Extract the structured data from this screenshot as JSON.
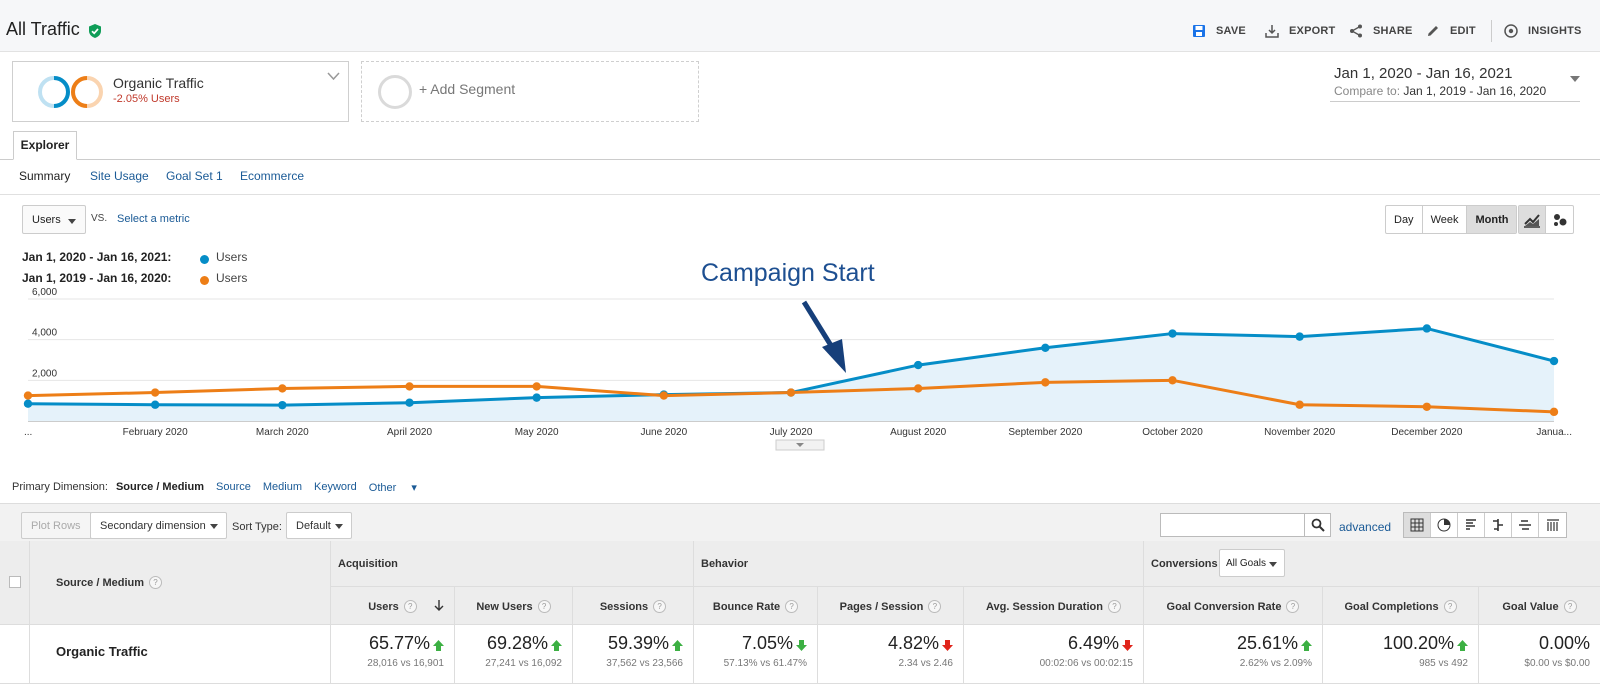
{
  "header": {
    "title": "All Traffic",
    "actions": {
      "save": "SAVE",
      "export": "EXPORT",
      "share": "SHARE",
      "edit": "EDIT",
      "insights": "INSIGHTS"
    }
  },
  "segments": {
    "active": {
      "name": "Organic Traffic",
      "delta": "-2.05% Users"
    },
    "add_label": "+ Add Segment"
  },
  "date_range": {
    "primary": "Jan 1, 2020 - Jan 16, 2021",
    "compare_label": "Compare to:",
    "compare": "Jan 1, 2019 - Jan 16, 2020"
  },
  "tabs": {
    "explorer": "Explorer",
    "subtabs": [
      "Summary",
      "Site Usage",
      "Goal Set 1",
      "Ecommerce"
    ]
  },
  "chart_controls": {
    "metric": "Users",
    "vs": "VS.",
    "select_metric": "Select a metric",
    "granularity": [
      "Day",
      "Week",
      "Month"
    ],
    "selected_granularity": "Month"
  },
  "legend": [
    {
      "range": "Jan 1, 2020 - Jan 16, 2021:",
      "series": "Users",
      "color": "#058dc7"
    },
    {
      "range": "Jan 1, 2019 - Jan 16, 2020:",
      "series": "Users",
      "color": "#ed7e17"
    }
  ],
  "annotation": "Campaign Start",
  "chart_data": {
    "type": "line",
    "x": [
      "...",
      "February 2020",
      "March 2020",
      "April 2020",
      "May 2020",
      "June 2020",
      "July 2020",
      "August 2020",
      "September 2020",
      "October 2020",
      "November 2020",
      "December 2020",
      "Janua..."
    ],
    "yticks": [
      "6,000",
      "4,000",
      "2,000"
    ],
    "ylim": [
      0,
      6000
    ],
    "series": [
      {
        "name": "Users",
        "color": "#058dc7",
        "fill": true,
        "values": [
          850,
          800,
          780,
          900,
          1150,
          1300,
          1400,
          2750,
          3600,
          4300,
          4150,
          4550,
          2950
        ]
      },
      {
        "name": "Users",
        "color": "#ed7e17",
        "fill": false,
        "values": [
          1250,
          1400,
          1600,
          1700,
          1700,
          1250,
          1400,
          1600,
          1900,
          2000,
          800,
          700,
          450
        ]
      }
    ],
    "grid": true
  },
  "dimensions": {
    "label": "Primary Dimension:",
    "items": [
      "Source / Medium",
      "Source",
      "Medium",
      "Keyword",
      "Other"
    ],
    "active": "Source / Medium"
  },
  "toolbar": {
    "plot_rows": "Plot Rows",
    "secondary_dimension": "Secondary dimension",
    "sort_type_label": "Sort Type:",
    "sort_type": "Default",
    "advanced": "advanced"
  },
  "table": {
    "dim_header": "Source / Medium",
    "groups": {
      "acquisition": "Acquisition",
      "behavior": "Behavior",
      "conversions": "Conversions",
      "goals_select": "All Goals"
    },
    "columns": [
      "Users",
      "New Users",
      "Sessions",
      "Bounce Rate",
      "Pages / Session",
      "Avg. Session Duration",
      "Goal Conversion Rate",
      "Goal Completions",
      "Goal Value"
    ],
    "row": {
      "label": "Organic Traffic",
      "values": [
        {
          "pct": "65.77%",
          "trend": "up",
          "good": true,
          "cmp": "28,016 vs 16,901"
        },
        {
          "pct": "69.28%",
          "trend": "up",
          "good": true,
          "cmp": "27,241 vs 16,092"
        },
        {
          "pct": "59.39%",
          "trend": "up",
          "good": true,
          "cmp": "37,562 vs 23,566"
        },
        {
          "pct": "7.05%",
          "trend": "down",
          "good": true,
          "cmp": "57.13% vs 61.47%"
        },
        {
          "pct": "4.82%",
          "trend": "down",
          "good": false,
          "cmp": "2.34 vs 2.46"
        },
        {
          "pct": "6.49%",
          "trend": "down",
          "good": false,
          "cmp": "00:02:06 vs 00:02:15"
        },
        {
          "pct": "25.61%",
          "trend": "up",
          "good": true,
          "cmp": "2.62% vs 2.09%"
        },
        {
          "pct": "100.20%",
          "trend": "up",
          "good": true,
          "cmp": "985 vs 492"
        },
        {
          "pct": "0.00%",
          "trend": "none",
          "good": true,
          "cmp": "$0.00 vs $0.00"
        }
      ]
    }
  }
}
